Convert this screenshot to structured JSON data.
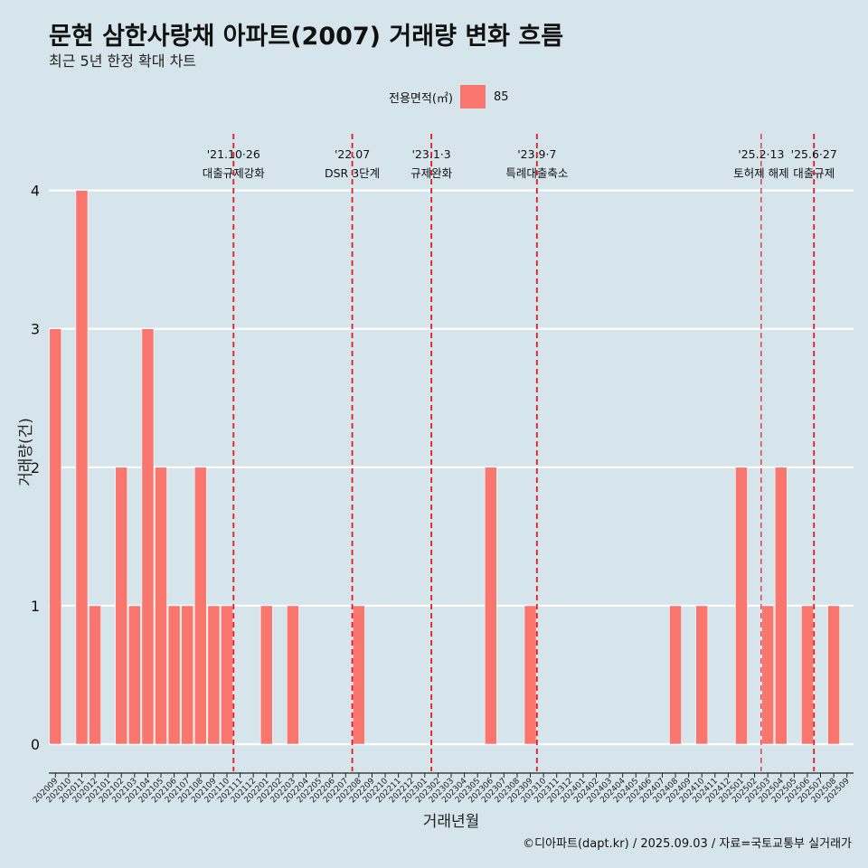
{
  "title": "문현 삼한사랑채 아파트(2007) 거래량 변화 흐름",
  "subtitle": "최근 5년 한정 확대 차트",
  "legend": {
    "title": "전용면적(㎡)",
    "item": "85",
    "color": "#f8766d"
  },
  "footer": "©디아파트(dapt.kr) / 2025.09.03 / 자료=국토교통부 실거래가",
  "chart_data": {
    "type": "bar",
    "xlabel": "거래년월",
    "ylabel": "거래량(건)",
    "ylim": [
      0,
      4
    ],
    "yticks": [
      "0",
      "1",
      "2",
      "3",
      "4"
    ],
    "series": [
      {
        "name": "85",
        "color": "#f8766d"
      }
    ],
    "categories": [
      "202009",
      "202010",
      "202011",
      "202012",
      "202101",
      "202102",
      "202103",
      "202104",
      "202105",
      "202106",
      "202107",
      "202108",
      "202109",
      "202110",
      "202111",
      "202112",
      "202201",
      "202202",
      "202203",
      "202204",
      "202205",
      "202206",
      "202207",
      "202208",
      "202209",
      "202210",
      "202211",
      "202212",
      "202301",
      "202302",
      "202303",
      "202304",
      "202305",
      "202306",
      "202307",
      "202308",
      "202309",
      "202310",
      "202311",
      "202312",
      "202401",
      "202402",
      "202403",
      "202404",
      "202405",
      "202406",
      "202407",
      "202408",
      "202409",
      "202410",
      "202411",
      "202412",
      "202501",
      "202502",
      "202503",
      "202504",
      "202505",
      "202506",
      "202507",
      "202508",
      "202509"
    ],
    "values": [
      3,
      0,
      4,
      1,
      0,
      2,
      1,
      3,
      2,
      1,
      1,
      2,
      1,
      1,
      0,
      0,
      1,
      0,
      1,
      0,
      0,
      0,
      0,
      1,
      0,
      0,
      0,
      0,
      0,
      0,
      0,
      0,
      0,
      2,
      0,
      0,
      1,
      0,
      0,
      0,
      0,
      0,
      0,
      0,
      0,
      0,
      0,
      1,
      0,
      1,
      0,
      0,
      2,
      0,
      1,
      2,
      0,
      1,
      0,
      1,
      0
    ],
    "events": [
      {
        "date": "'21.10·26",
        "label": "대출규제강화",
        "position": 13.5
      },
      {
        "date": "'22.07",
        "label": "DSR 3단계",
        "position": 22.5
      },
      {
        "date": "'23.1·3",
        "label": "규제완화",
        "position": 28.5
      },
      {
        "date": "'23.9·7",
        "label": "특례대출축소",
        "position": 36.5
      },
      {
        "date": "'25.2·13",
        "label": "토허제 해제",
        "position": 53.5
      },
      {
        "date": "'25.6·27",
        "label": "대출규제",
        "position": 57.5
      }
    ]
  }
}
